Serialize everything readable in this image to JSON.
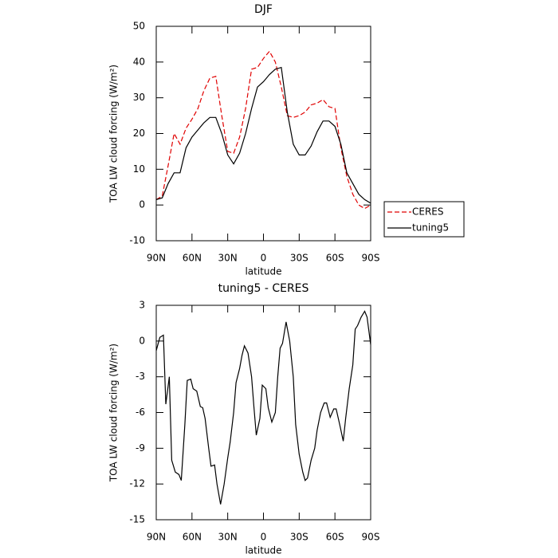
{
  "chart_data": [
    {
      "type": "line",
      "title": "DJF",
      "xlabel": "latitude",
      "ylabel": "TOA LW cloud forcing (W/m²)",
      "x": [
        90,
        85,
        80,
        75,
        70,
        65,
        60,
        55,
        50,
        45,
        40,
        35,
        30,
        25,
        20,
        15,
        10,
        5,
        0,
        -5,
        -10,
        -15,
        -20,
        -25,
        -30,
        -35,
        -40,
        -45,
        -50,
        -55,
        -60,
        -65,
        -70,
        -75,
        -80,
        -85,
        -90
      ],
      "series": [
        {
          "name": "CERES",
          "color": "#e00000",
          "dashed": true,
          "values": [
            1.5,
            2.5,
            11,
            20,
            17,
            21.5,
            24,
            27,
            32,
            35.5,
            36,
            25,
            15,
            14.5,
            19,
            27,
            38,
            38.5,
            41,
            43,
            40,
            33,
            25,
            24.5,
            25,
            26,
            28,
            28.5,
            29.5,
            27.5,
            27,
            16,
            8,
            3,
            0,
            -1,
            0
          ]
        },
        {
          "name": "tuning5",
          "color": "#000000",
          "dashed": false,
          "values": [
            1.5,
            2,
            6,
            9,
            9,
            16,
            19,
            21,
            23,
            24.5,
            24.5,
            20,
            14,
            11.5,
            14.5,
            20,
            27,
            33,
            34.5,
            36.5,
            38,
            38.5,
            26,
            17,
            14,
            14,
            16.5,
            20.5,
            23.5,
            23.5,
            22,
            17,
            9,
            6,
            3,
            1.5,
            0.5
          ]
        }
      ],
      "xlim": [
        90,
        -90
      ],
      "xticks": [
        {
          "value": 90,
          "label": "90N"
        },
        {
          "value": 60,
          "label": "60N"
        },
        {
          "value": 30,
          "label": "30N"
        },
        0,
        {
          "value": -30,
          "label": "30S"
        },
        {
          "value": -60,
          "label": "60S"
        },
        {
          "value": -90,
          "label": "90S"
        }
      ],
      "ylim": [
        -10,
        50
      ],
      "yticks": [
        -10,
        0,
        10,
        20,
        30,
        40,
        50
      ],
      "legend": "right"
    },
    {
      "type": "line",
      "title": "tuning5 - CERES",
      "xlabel": "latitude",
      "ylabel": "TOA LW cloud forcing (W/m²)",
      "x": [
        90,
        87,
        84,
        82,
        79,
        77,
        74,
        71,
        69,
        66,
        64,
        61,
        59,
        56,
        53,
        51,
        49,
        46,
        44,
        41,
        39,
        36,
        33,
        30,
        28,
        25,
        23,
        20,
        18,
        16,
        13,
        10,
        8,
        6,
        3,
        1,
        -2,
        -4,
        -7,
        -10,
        -12,
        -14,
        -16,
        -19,
        -22,
        -25,
        -27,
        -30,
        -33,
        -35,
        -37,
        -40,
        -43,
        -45,
        -48,
        -51,
        -53,
        -56,
        -59,
        -61,
        -64,
        -67,
        -69,
        -72,
        -75,
        -77,
        -79,
        -82,
        -85,
        -87,
        -90
      ],
      "color": "#000000",
      "values": [
        -0.8,
        0.3,
        0.5,
        -5.3,
        -3,
        -10,
        -11,
        -11.2,
        -11.7,
        -7,
        -3.3,
        -3.2,
        -4,
        -4.2,
        -5.5,
        -5.6,
        -6.5,
        -9,
        -10.5,
        -10.4,
        -12,
        -13.7,
        -12,
        -9.8,
        -8.5,
        -6,
        -3.5,
        -2.3,
        -1.2,
        -0.4,
        -1,
        -3,
        -5.5,
        -7.9,
        -6.5,
        -3.7,
        -4,
        -5.6,
        -6.8,
        -6,
        -3,
        -0.6,
        -0.2,
        1.6,
        0,
        -3,
        -7,
        -9.5,
        -11,
        -11.7,
        -11.5,
        -10,
        -9,
        -7.5,
        -6,
        -5.2,
        -5.2,
        -6.4,
        -5.7,
        -5.7,
        -7,
        -8.4,
        -6.5,
        -4,
        -2,
        1,
        1.3,
        2,
        2.5,
        2,
        -0.3
      ],
      "xlim": [
        90,
        -90
      ],
      "xticks": [
        {
          "value": 90,
          "label": "90N"
        },
        {
          "value": 60,
          "label": "60N"
        },
        {
          "value": 30,
          "label": "30N"
        },
        0,
        {
          "value": -30,
          "label": "30S"
        },
        {
          "value": -60,
          "label": "60S"
        },
        {
          "value": -90,
          "label": "90S"
        }
      ],
      "ylim": [
        -15,
        3
      ],
      "yticks": [
        -15,
        -12,
        -9,
        -6,
        -3,
        0,
        3
      ]
    }
  ]
}
